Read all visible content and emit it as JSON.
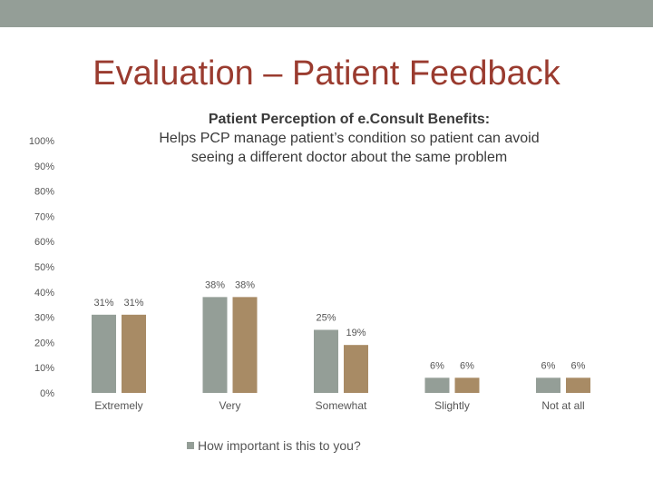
{
  "slide": {
    "title": "Evaluation – Patient Feedback"
  },
  "colors": {
    "topbar": "#949e97",
    "title": "#9a3b2f",
    "series1": "#949e97",
    "series2": "#a88b65",
    "text": "#555555"
  },
  "chart_data": {
    "type": "bar",
    "title_lines": [
      "Patient Perception of e.Consult Benefits:",
      "Helps PCP manage patient’s condition so patient can avoid",
      "seeing a different doctor about the same problem"
    ],
    "categories": [
      "Extremely",
      "Very",
      "Somewhat",
      "Slightly",
      "Not at all"
    ],
    "series": [
      {
        "name": "How important is this to you?",
        "values": [
          31,
          38,
          25,
          6,
          6
        ],
        "labels": [
          "31%",
          "38%",
          "25%",
          "6%",
          "6%"
        ]
      },
      {
        "name": "",
        "values": [
          31,
          38,
          19,
          6,
          6
        ],
        "labels": [
          "31%",
          "38%",
          "19%",
          "6%",
          "6%"
        ]
      }
    ],
    "ylim": [
      0,
      100
    ],
    "yticks": [
      "0%",
      "10%",
      "20%",
      "30%",
      "40%",
      "50%",
      "60%",
      "70%",
      "80%",
      "90%",
      "100%"
    ],
    "legend": {
      "label": "How important is this to you?",
      "position": "bottom"
    },
    "grid": false
  }
}
